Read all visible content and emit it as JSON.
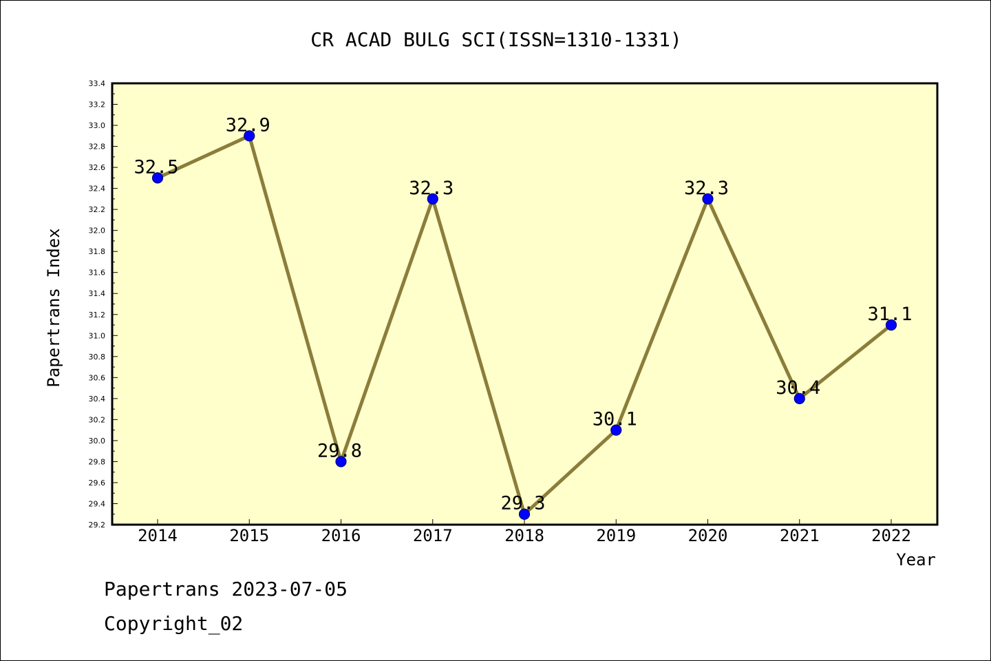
{
  "colors": {
    "plot_background": "#ffffcc",
    "line": "#8b7d3a",
    "marker_fill": "#0000ff",
    "marker_stroke": "#000080",
    "axis": "#000000"
  },
  "chart_data": {
    "type": "line",
    "title": "CR ACAD BULG SCI(ISSN=1310-1331)",
    "xlabel": "Year",
    "ylabel": "Papertrans Index",
    "categories": [
      "2014",
      "2015",
      "2016",
      "2017",
      "2018",
      "2019",
      "2020",
      "2021",
      "2022"
    ],
    "series": [
      {
        "values": [
          32.5,
          32.9,
          29.8,
          32.3,
          29.3,
          30.1,
          32.3,
          30.4,
          31.1
        ],
        "data_labels": [
          "32.5",
          "32.9",
          "29.8",
          "32.3",
          "29.3",
          "30.1",
          "32.3",
          "30.4",
          "31.1"
        ]
      }
    ],
    "ylim": [
      29.2,
      33.4
    ],
    "y_ticks": [
      "29.2",
      "29.4",
      "29.6",
      "29.8",
      "30.0",
      "30.2",
      "30.4",
      "30.6",
      "30.8",
      "31.0",
      "31.2",
      "31.4",
      "31.6",
      "31.8",
      "32.0",
      "32.2",
      "32.4",
      "32.6",
      "32.8",
      "33.0",
      "33.2",
      "33.4"
    ],
    "y_tick_step": 0.2,
    "y_minor_step": 0.1,
    "grid": false,
    "legend": "none"
  },
  "footer": {
    "line1": "Papertrans 2023-07-05",
    "line2": "Copyright_02"
  }
}
